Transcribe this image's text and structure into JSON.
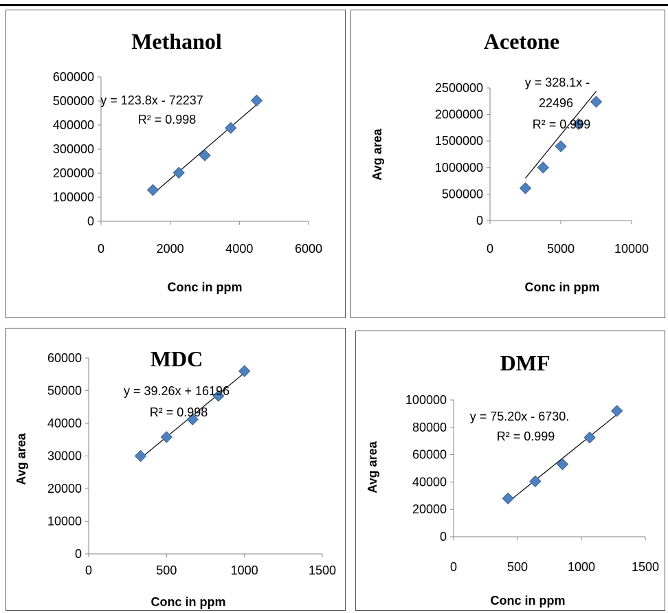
{
  "chart_data": [
    {
      "type": "scatter",
      "title": "Methanol",
      "xlabel": "Conc in ppm",
      "ylabel": "",
      "x": [
        1500,
        2250,
        3000,
        3750,
        4500
      ],
      "y": [
        130000,
        202000,
        274000,
        388000,
        502000
      ],
      "xlim": [
        0,
        6000
      ],
      "ylim": [
        0,
        600000
      ],
      "xticks": [
        "0",
        "2000",
        "4000",
        "6000"
      ],
      "yticks": [
        "0",
        "100000",
        "200000",
        "300000",
        "400000",
        "500000",
        "600000"
      ],
      "trendline": {
        "slope": 123.8,
        "intercept": -72237
      },
      "equation": [
        "y = 123.8x - 72237"
      ],
      "r2": "R² = 0.998",
      "marker_color": "#4f81bd",
      "grid": false
    },
    {
      "type": "scatter",
      "title": "Acetone",
      "xlabel": "Conc in ppm",
      "ylabel": "Avg area",
      "x": [
        2500,
        3750,
        5000,
        6250,
        7500
      ],
      "y": [
        610000,
        1000000,
        1400000,
        1820000,
        2240000
      ],
      "xlim": [
        0,
        10000
      ],
      "ylim": [
        0,
        2500000
      ],
      "xticks": [
        "0",
        "5000",
        "10000"
      ],
      "yticks": [
        "0",
        "500000",
        "1000000",
        "1500000",
        "2000000",
        "2500000"
      ],
      "trendline": {
        "slope": 328.1,
        "intercept": -22496
      },
      "equation": [
        "y = 328.1x -",
        "22496"
      ],
      "r2": "R² = 0.999",
      "marker_color": "#4f81bd",
      "grid": false
    },
    {
      "type": "scatter",
      "title": "MDC",
      "xlabel": "Conc in ppm",
      "ylabel": "Avg area",
      "x": [
        333,
        500,
        667,
        833,
        1000
      ],
      "y": [
        30000,
        35800,
        41200,
        48400,
        56000
      ],
      "xlim": [
        0,
        1500
      ],
      "ylim": [
        0,
        60000
      ],
      "xticks": [
        "0",
        "500",
        "1000",
        "1500"
      ],
      "yticks": [
        "0",
        "10000",
        "20000",
        "30000",
        "40000",
        "50000",
        "60000"
      ],
      "trendline": {
        "slope": 39.26,
        "intercept": 16196
      },
      "equation": [
        "y = 39.26x + 16196"
      ],
      "r2": "R² = 0.998",
      "marker_color": "#4f81bd",
      "grid": false
    },
    {
      "type": "scatter",
      "title": "DMF",
      "xlabel": "Conc in ppm",
      "ylabel": "Avg area",
      "x": [
        426,
        639,
        852,
        1065,
        1278
      ],
      "y": [
        28000,
        40500,
        53000,
        72500,
        92000
      ],
      "xlim": [
        0,
        1500
      ],
      "ylim": [
        0,
        100000
      ],
      "xticks": [
        "0",
        "500",
        "1000",
        "1500"
      ],
      "yticks": [
        "0",
        "20000",
        "40000",
        "60000",
        "80000",
        "100000"
      ],
      "trendline": {
        "slope": 75.2,
        "intercept": -6730
      },
      "equation": [
        "y = 75.20x - 6730."
      ],
      "r2": "R² = 0.999",
      "marker_color": "#4f81bd",
      "grid": false
    }
  ]
}
